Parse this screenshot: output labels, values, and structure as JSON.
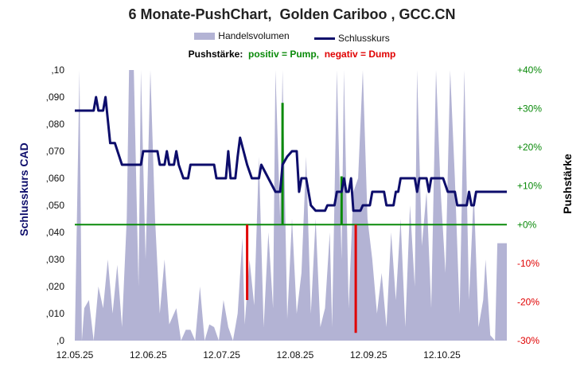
{
  "chart_data": {
    "type": "line",
    "title": "6 Monate-PushChart,  Golden Cariboo , GCC.CN",
    "ylabel_left": "Schlusskurs CAD",
    "ylabel_right": "Pushstärke",
    "legend": {
      "placement": "top",
      "volume_label": "Handelsvolumen",
      "close_label": "Schlusskurs"
    },
    "push_legend": {
      "prefix": "Pushstärke:",
      "positive": "positiv = Pump,",
      "negative": "negativ = Dump"
    },
    "y_left": {
      "ylim": [
        0,
        0.1
      ],
      "ticks": [
        ",0",
        ",010",
        ",020",
        ",030",
        ",040",
        ",050",
        ",060",
        ",070",
        ",080",
        ",090",
        ",10"
      ]
    },
    "y_right": {
      "ylim": [
        -30,
        40
      ],
      "ticks": [
        "-30%",
        "-20%",
        "-10%",
        "+0%",
        "+10%",
        "+20%",
        "+30%",
        "+40%"
      ]
    },
    "x_ticks": [
      "12.05.25",
      "12.06.25",
      "12.07.25",
      "12.08.25",
      "12.09.25",
      "12.10.25"
    ],
    "x_range": [
      "2025-05-12",
      "2025-11-11"
    ],
    "grid": false,
    "colors": {
      "close": "#0d0d6b",
      "volume": "#b3b3d4",
      "zero": "#0a8a0a",
      "pump": "#0a8a0a",
      "dump": "#e00000",
      "left_axis": "#0d0d6b",
      "right_axis_pos": "#0a8a0a",
      "right_axis_neg": "#e00000",
      "title": "#222222"
    },
    "close": [
      [
        "2025-05-12",
        0.085
      ],
      [
        "2025-05-20",
        0.085
      ],
      [
        "2025-05-21",
        0.09
      ],
      [
        "2025-05-22",
        0.085
      ],
      [
        "2025-05-24",
        0.085
      ],
      [
        "2025-05-25",
        0.09
      ],
      [
        "2025-05-27",
        0.073
      ],
      [
        "2025-05-29",
        0.073
      ],
      [
        "2025-06-01",
        0.065
      ],
      [
        "2025-06-02",
        0.065
      ],
      [
        "2025-06-09",
        0.065
      ],
      [
        "2025-06-10",
        0.07
      ],
      [
        "2025-06-16",
        0.07
      ],
      [
        "2025-06-17",
        0.065
      ],
      [
        "2025-06-19",
        0.065
      ],
      [
        "2025-06-20",
        0.07
      ],
      [
        "2025-06-21",
        0.065
      ],
      [
        "2025-06-23",
        0.065
      ],
      [
        "2025-06-24",
        0.07
      ],
      [
        "2025-06-25",
        0.065
      ],
      [
        "2025-06-27",
        0.06
      ],
      [
        "2025-06-29",
        0.06
      ],
      [
        "2025-06-30",
        0.065
      ],
      [
        "2025-07-10",
        0.065
      ],
      [
        "2025-07-11",
        0.06
      ],
      [
        "2025-07-15",
        0.06
      ],
      [
        "2025-07-16",
        0.07
      ],
      [
        "2025-07-17",
        0.06
      ],
      [
        "2025-07-19",
        0.06
      ],
      [
        "2025-07-20",
        0.068
      ],
      [
        "2025-07-21",
        0.075
      ],
      [
        "2025-07-24",
        0.065
      ],
      [
        "2025-07-26",
        0.06
      ],
      [
        "2025-07-29",
        0.06
      ],
      [
        "2025-07-30",
        0.065
      ],
      [
        "2025-08-02",
        0.06
      ],
      [
        "2025-08-05",
        0.055
      ],
      [
        "2025-08-07",
        0.055
      ],
      [
        "2025-08-08",
        0.065
      ],
      [
        "2025-08-10",
        0.068
      ],
      [
        "2025-08-12",
        0.07
      ],
      [
        "2025-08-14",
        0.07
      ],
      [
        "2025-08-15",
        0.055
      ],
      [
        "2025-08-16",
        0.06
      ],
      [
        "2025-08-18",
        0.06
      ],
      [
        "2025-08-20",
        0.05
      ],
      [
        "2025-08-22",
        0.048
      ],
      [
        "2025-08-26",
        0.048
      ],
      [
        "2025-08-27",
        0.05
      ],
      [
        "2025-08-30",
        0.05
      ],
      [
        "2025-08-31",
        0.055
      ],
      [
        "2025-09-02",
        0.055
      ],
      [
        "2025-09-03",
        0.06
      ],
      [
        "2025-09-04",
        0.055
      ],
      [
        "2025-09-05",
        0.055
      ],
      [
        "2025-09-06",
        0.06
      ],
      [
        "2025-09-07",
        0.048
      ],
      [
        "2025-09-10",
        0.048
      ],
      [
        "2025-09-11",
        0.05
      ],
      [
        "2025-09-14",
        0.05
      ],
      [
        "2025-09-15",
        0.055
      ],
      [
        "2025-09-20",
        0.055
      ],
      [
        "2025-09-21",
        0.05
      ],
      [
        "2025-09-24",
        0.05
      ],
      [
        "2025-09-25",
        0.055
      ],
      [
        "2025-09-26",
        0.055
      ],
      [
        "2025-09-27",
        0.06
      ],
      [
        "2025-10-03",
        0.06
      ],
      [
        "2025-10-04",
        0.055
      ],
      [
        "2025-10-05",
        0.06
      ],
      [
        "2025-10-08",
        0.06
      ],
      [
        "2025-10-09",
        0.055
      ],
      [
        "2025-10-10",
        0.06
      ],
      [
        "2025-10-15",
        0.06
      ],
      [
        "2025-10-17",
        0.055
      ],
      [
        "2025-10-20",
        0.055
      ],
      [
        "2025-10-21",
        0.05
      ],
      [
        "2025-10-25",
        0.05
      ],
      [
        "2025-10-26",
        0.055
      ],
      [
        "2025-10-27",
        0.05
      ],
      [
        "2025-10-28",
        0.05
      ],
      [
        "2025-10-29",
        0.055
      ],
      [
        "2025-11-01",
        0.055
      ],
      [
        "2025-11-02",
        0.055
      ],
      [
        "2025-11-11",
        0.055
      ]
    ],
    "volume": [
      [
        "2025-05-12",
        0
      ],
      [
        "2025-05-14",
        1.0
      ],
      [
        "2025-05-15",
        0
      ],
      [
        "2025-05-16",
        0.12
      ],
      [
        "2025-05-18",
        0.15
      ],
      [
        "2025-05-20",
        0
      ],
      [
        "2025-05-22",
        0.2
      ],
      [
        "2025-05-24",
        0.12
      ],
      [
        "2025-05-26",
        0.3
      ],
      [
        "2025-05-28",
        0.1
      ],
      [
        "2025-05-30",
        0.28
      ],
      [
        "2025-06-01",
        0.05
      ],
      [
        "2025-06-03",
        0.45
      ],
      [
        "2025-06-04",
        1.0
      ],
      [
        "2025-06-06",
        1.0
      ],
      [
        "2025-06-08",
        0.2
      ],
      [
        "2025-06-09",
        1.0
      ],
      [
        "2025-06-11",
        0.3
      ],
      [
        "2025-06-13",
        1.0
      ],
      [
        "2025-06-15",
        0.45
      ],
      [
        "2025-06-17",
        0.1
      ],
      [
        "2025-06-19",
        0.3
      ],
      [
        "2025-06-21",
        0.06
      ],
      [
        "2025-06-24",
        0.12
      ],
      [
        "2025-06-26",
        0.0
      ],
      [
        "2025-06-28",
        0.04
      ],
      [
        "2025-06-30",
        0.04
      ],
      [
        "2025-07-02",
        0.0
      ],
      [
        "2025-07-04",
        0.2
      ],
      [
        "2025-07-06",
        0.0
      ],
      [
        "2025-07-08",
        0.06
      ],
      [
        "2025-07-10",
        0.05
      ],
      [
        "2025-07-12",
        0.0
      ],
      [
        "2025-07-14",
        0.15
      ],
      [
        "2025-07-16",
        0.05
      ],
      [
        "2025-07-18",
        0.0
      ],
      [
        "2025-07-20",
        0.1
      ],
      [
        "2025-07-22",
        0.38
      ],
      [
        "2025-07-23",
        0.06
      ],
      [
        "2025-07-25",
        0.3
      ],
      [
        "2025-07-27",
        0.13
      ],
      [
        "2025-07-29",
        0.68
      ],
      [
        "2025-07-31",
        0.05
      ],
      [
        "2025-08-02",
        0.4
      ],
      [
        "2025-08-04",
        0.12
      ],
      [
        "2025-08-05",
        1.0
      ],
      [
        "2025-08-07",
        0.45
      ],
      [
        "2025-08-08",
        1.0
      ],
      [
        "2025-08-10",
        0.08
      ],
      [
        "2025-08-12",
        0.45
      ],
      [
        "2025-08-14",
        0.1
      ],
      [
        "2025-08-16",
        0.25
      ],
      [
        "2025-08-18",
        0.68
      ],
      [
        "2025-08-20",
        0.1
      ],
      [
        "2025-08-22",
        0.45
      ],
      [
        "2025-08-24",
        0.05
      ],
      [
        "2025-08-26",
        0.12
      ],
      [
        "2025-08-28",
        0.4
      ],
      [
        "2025-08-29",
        0.05
      ],
      [
        "2025-08-31",
        1.0
      ],
      [
        "2025-09-02",
        0.3
      ],
      [
        "2025-09-03",
        1.0
      ],
      [
        "2025-09-05",
        0.12
      ],
      [
        "2025-09-07",
        0.55
      ],
      [
        "2025-09-09",
        0.6
      ],
      [
        "2025-09-11",
        1.0
      ],
      [
        "2025-09-13",
        0.45
      ],
      [
        "2025-09-15",
        0.3
      ],
      [
        "2025-09-17",
        0.1
      ],
      [
        "2025-09-19",
        0.25
      ],
      [
        "2025-09-21",
        0.05
      ],
      [
        "2025-09-23",
        0.4
      ],
      [
        "2025-09-25",
        0.15
      ],
      [
        "2025-09-27",
        0.45
      ],
      [
        "2025-09-29",
        0.05
      ],
      [
        "2025-10-01",
        0.5
      ],
      [
        "2025-10-03",
        0.2
      ],
      [
        "2025-10-04",
        1.0
      ],
      [
        "2025-10-06",
        0.35
      ],
      [
        "2025-10-08",
        0.55
      ],
      [
        "2025-10-10",
        0.12
      ],
      [
        "2025-10-12",
        1.0
      ],
      [
        "2025-10-14",
        0.55
      ],
      [
        "2025-10-16",
        0.25
      ],
      [
        "2025-10-18",
        1.0
      ],
      [
        "2025-10-20",
        0.6
      ],
      [
        "2025-10-22",
        0.1
      ],
      [
        "2025-10-24",
        1.0
      ],
      [
        "2025-10-26",
        0.15
      ],
      [
        "2025-10-28",
        0.55
      ],
      [
        "2025-10-30",
        0.05
      ],
      [
        "2025-11-01",
        0.15
      ],
      [
        "2025-11-02",
        0.3
      ],
      [
        "2025-11-04",
        0.02
      ],
      [
        "2025-11-06",
        0.0
      ],
      [
        "2025-11-07",
        0.36
      ],
      [
        "2025-11-11",
        0.36
      ]
    ],
    "push": [
      {
        "date": "2025-07-24",
        "value": -19.5
      },
      {
        "date": "2025-08-08",
        "value": 31.5
      },
      {
        "date": "2025-09-02",
        "value": 12.5
      },
      {
        "date": "2025-09-08",
        "value": -28.0
      }
    ]
  }
}
